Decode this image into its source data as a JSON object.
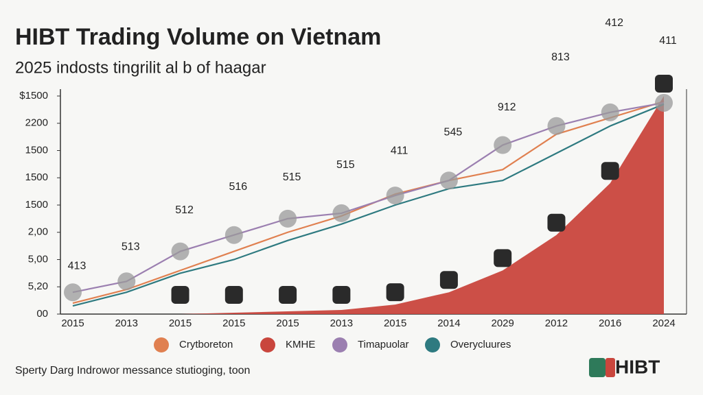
{
  "chart_data": {
    "type": "line",
    "title": "HIBT Trading Volume on Vietnam",
    "subtitle": "2025 indosts tingrilit al b of haagar",
    "categories": [
      "2015",
      "2013",
      "2015",
      "2015",
      "2015",
      "2013",
      "2015",
      "2014",
      "2029",
      "2012",
      "2016",
      "2024"
    ],
    "ylim": [
      0,
      8
    ],
    "yticks": [
      {
        "value": 0,
        "label": "00"
      },
      {
        "value": 1,
        "label": "5,20"
      },
      {
        "value": 2,
        "label": "5,00"
      },
      {
        "value": 3,
        "label": "2,00"
      },
      {
        "value": 4,
        "label": "1500"
      },
      {
        "value": 5,
        "label": "1500"
      },
      {
        "value": 6,
        "label": "1500"
      },
      {
        "value": 7,
        "label": "2200"
      },
      {
        "value": 8,
        "label": "$1500"
      }
    ],
    "series": [
      {
        "name": "Crytboreton",
        "color": "#e08050",
        "values": [
          0.4,
          0.9,
          1.6,
          2.3,
          3.0,
          3.6,
          4.4,
          4.9,
          5.3,
          6.6,
          7.2,
          7.8
        ]
      },
      {
        "name": "KMHE",
        "color": "#c9463d",
        "values": [
          0,
          0,
          0,
          0.05,
          0.1,
          0.15,
          0.35,
          0.8,
          1.6,
          2.9,
          4.8,
          8.0
        ]
      },
      {
        "name": "Timapuolar",
        "color": "#9b7fb0",
        "values": [
          0.8,
          1.2,
          2.3,
          2.9,
          3.5,
          3.7,
          4.35,
          4.9,
          6.2,
          6.9,
          7.4,
          7.75
        ]
      },
      {
        "name": "Overycluures",
        "color": "#2e7a80",
        "values": [
          0.3,
          0.8,
          1.5,
          2.0,
          2.7,
          3.3,
          4.0,
          4.6,
          4.9,
          5.9,
          6.9,
          7.7
        ]
      }
    ],
    "annotations": [
      "413",
      "513",
      "512",
      "516",
      "515",
      "515",
      "411",
      "545",
      "912",
      "813",
      "412",
      "411"
    ],
    "footnote": "Sperty Darg Indrowor messance stutioging, toon",
    "logo": "HIBT"
  }
}
